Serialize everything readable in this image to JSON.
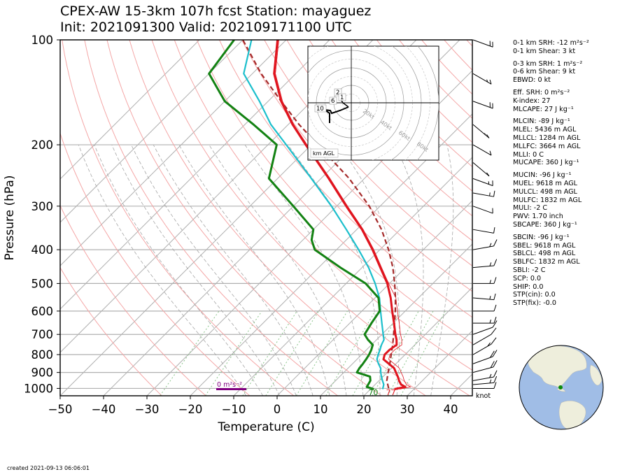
{
  "title": {
    "line1": "CPEX-AW 15-3km  107h fcst  Station: mayaguez",
    "line2": "Init: 2021091300  Valid: 202109171100 UTC"
  },
  "footer": "created 2021-09-13 06:06:01",
  "stats": [
    {
      "label": "0-1 km SRH: -12 m²s⁻²"
    },
    {
      "label": "0-1 km Shear: 3 kt"
    },
    {
      "label": ""
    },
    {
      "label": "0-3 km SRH: 1 m²s⁻²"
    },
    {
      "label": "0-6 km Shear: 9 kt"
    },
    {
      "label": "EBWD: 0 kt"
    },
    {
      "label": ""
    },
    {
      "label": "Eff. SRH: 0 m²s⁻²"
    },
    {
      "label": "K-index: 27"
    },
    {
      "label": "MLCAPE: 27 J kg⁻¹"
    },
    {
      "label": ""
    },
    {
      "label": "MLCIN: -89 J kg⁻¹"
    },
    {
      "label": "MLEL: 5436 m AGL"
    },
    {
      "label": "MLLCL: 1284 m AGL"
    },
    {
      "label": "MLLFC: 3664 m AGL"
    },
    {
      "label": "MLLI: 0 C"
    },
    {
      "label": "MUCAPE: 360 J kg⁻¹"
    },
    {
      "label": ""
    },
    {
      "label": "MUCIN: -96 J kg⁻¹"
    },
    {
      "label": "MUEL: 9618 m AGL"
    },
    {
      "label": "MULCL: 498 m AGL"
    },
    {
      "label": "MULFC: 1832 m AGL"
    },
    {
      "label": "MULI: -2 C"
    },
    {
      "label": "PWV: 1.70 inch"
    },
    {
      "label": "SBCAPE: 360 J kg⁻¹"
    },
    {
      "label": ""
    },
    {
      "label": "SBCIN: -96 J kg⁻¹"
    },
    {
      "label": "SBEL: 9618 m AGL"
    },
    {
      "label": "SBLCL: 498 m AGL"
    },
    {
      "label": "SBLFC: 1832 m AGL"
    },
    {
      "label": "SBLI: -2 C"
    },
    {
      "label": "SCP: 0.0"
    },
    {
      "label": "SHIP: 0.0"
    },
    {
      "label": "STP(cin): 0.0"
    },
    {
      "label": "STP(fix): -0.0"
    }
  ],
  "chart_data": {
    "type": "line",
    "subtype": "skew-T log-p",
    "xlabel": "Temperature (C)",
    "ylabel": "Pressure (hPa)",
    "xlim": [
      -50,
      45
    ],
    "ylim": [
      1050,
      100
    ],
    "x_ticks": [
      "−50",
      "−40",
      "−30",
      "−20",
      "−10",
      "0",
      "10",
      "20",
      "30",
      "40"
    ],
    "x_tick_values": [
      -50,
      -40,
      -30,
      -20,
      -10,
      0,
      10,
      20,
      30,
      40
    ],
    "y_ticks": [
      "100",
      "200",
      "300",
      "400",
      "500",
      "600",
      "700",
      "800",
      "900",
      "1000"
    ],
    "y_tick_values": [
      100,
      200,
      300,
      400,
      500,
      600,
      700,
      800,
      900,
      1000
    ],
    "surface_labels": {
      "dewpoint": "70",
      "temperature": "77"
    },
    "srh_label": "0 m²s⁻²",
    "wind_units_label": "knot",
    "hodograph": {
      "ring_labels": [
        "20kt",
        "40kt",
        "60kt",
        "80kt"
      ],
      "height_labels": [
        "2",
        "1",
        "6",
        "10"
      ],
      "legend": "km AGL"
    },
    "colors": {
      "temperature": "#e0141e",
      "dewpoint": "#138213",
      "wetbulb": "#1cbfcc",
      "parcel": "#a52a2a",
      "srh_bar": "#800080"
    },
    "series": [
      {
        "key": "temperature",
        "p": [
          1005,
          990,
          975,
          950,
          925,
          900,
          875,
          850,
          825,
          800,
          775,
          750,
          725,
          700,
          650,
          600,
          550,
          500,
          450,
          400,
          350,
          300,
          250,
          200,
          175,
          150,
          125,
          100
        ],
        "values": [
          25.5,
          27.5,
          26.0,
          24.6,
          23.4,
          22.0,
          20.6,
          18.4,
          16.1,
          15.3,
          15.3,
          15.8,
          14.6,
          13.1,
          10.2,
          7.0,
          3.6,
          -0.5,
          -5.8,
          -11.7,
          -18.8,
          -27.8,
          -38.2,
          -51.3,
          -59.0,
          -67.0,
          -75.0,
          -82.0
        ]
      },
      {
        "key": "wetbulb",
        "p": [
          1005,
          975,
          950,
          925,
          900,
          875,
          850,
          825,
          800,
          775,
          750,
          725,
          700,
          650,
          600,
          550,
          500,
          450,
          400,
          350,
          300,
          250,
          200,
          175,
          150,
          125,
          100
        ],
        "values": [
          22.8,
          22.0,
          20.8,
          19.6,
          18.5,
          17.5,
          16.0,
          14.6,
          13.8,
          13.1,
          12.3,
          11.7,
          10.3,
          7.4,
          4.3,
          1.0,
          -3.3,
          -8.5,
          -14.9,
          -22.4,
          -31.2,
          -42.2,
          -55.8,
          -64.0,
          -72.0,
          -82.0,
          -88.0
        ]
      },
      {
        "key": "dewpoint",
        "p": [
          1005,
          990,
          975,
          950,
          925,
          900,
          875,
          850,
          825,
          800,
          775,
          750,
          725,
          700,
          650,
          600,
          550,
          500,
          450,
          400,
          375,
          350,
          300,
          250,
          200,
          175,
          150,
          125,
          100
        ],
        "values": [
          20.8,
          18.6,
          18.4,
          18.0,
          17.0,
          13.0,
          12.6,
          12.4,
          12.1,
          11.7,
          11.1,
          10.3,
          8.0,
          6.0,
          5.0,
          4.1,
          0.8,
          -5.5,
          -15.0,
          -25.0,
          -28.0,
          -30.0,
          -40.0,
          -52.0,
          -58.0,
          -68.0,
          -80.0,
          -90.0,
          -92.0
        ]
      },
      {
        "key": "parcel",
        "p": [
          1000,
          950,
          900,
          850,
          800,
          750,
          700,
          650,
          600,
          550,
          500,
          450,
          400,
          350,
          300,
          250,
          200,
          175,
          150,
          125,
          100
        ],
        "values": [
          24.0,
          21.8,
          20.2,
          18.6,
          16.8,
          14.9,
          12.7,
          10.3,
          7.7,
          4.7,
          1.2,
          -2.9,
          -8.0,
          -14.3,
          -22.5,
          -33.5,
          -48.5,
          -57.5,
          -67.0,
          -78.0,
          -90.0
        ]
      }
    ],
    "wind_barbs": [
      {
        "p": 100,
        "spd": 20,
        "dir": 250
      },
      {
        "p": 125,
        "spd": 15,
        "dir": 240
      },
      {
        "p": 150,
        "spd": 20,
        "dir": 250
      },
      {
        "p": 175,
        "spd": 15,
        "dir": 230
      },
      {
        "p": 200,
        "spd": 10,
        "dir": 240
      },
      {
        "p": 225,
        "spd": 10,
        "dir": 230
      },
      {
        "p": 250,
        "spd": 15,
        "dir": 250
      },
      {
        "p": 275,
        "spd": 15,
        "dir": 260
      },
      {
        "p": 300,
        "spd": 10,
        "dir": 250
      },
      {
        "p": 350,
        "spd": 10,
        "dir": 260
      },
      {
        "p": 400,
        "spd": 15,
        "dir": 280
      },
      {
        "p": 450,
        "spd": 15,
        "dir": 275
      },
      {
        "p": 500,
        "spd": 15,
        "dir": 270
      },
      {
        "p": 550,
        "spd": 15,
        "dir": 265
      },
      {
        "p": 600,
        "spd": 10,
        "dir": 270
      },
      {
        "p": 650,
        "spd": 15,
        "dir": 270
      },
      {
        "p": 700,
        "spd": 10,
        "dir": 290
      },
      {
        "p": 750,
        "spd": 10,
        "dir": 300
      },
      {
        "p": 800,
        "spd": 15,
        "dir": 300
      },
      {
        "p": 850,
        "spd": 20,
        "dir": 290
      },
      {
        "p": 900,
        "spd": 20,
        "dir": 285
      },
      {
        "p": 950,
        "spd": 15,
        "dir": 280
      },
      {
        "p": 975,
        "spd": 15,
        "dir": 275
      },
      {
        "p": 1000,
        "spd": 10,
        "dir": 270
      }
    ]
  }
}
